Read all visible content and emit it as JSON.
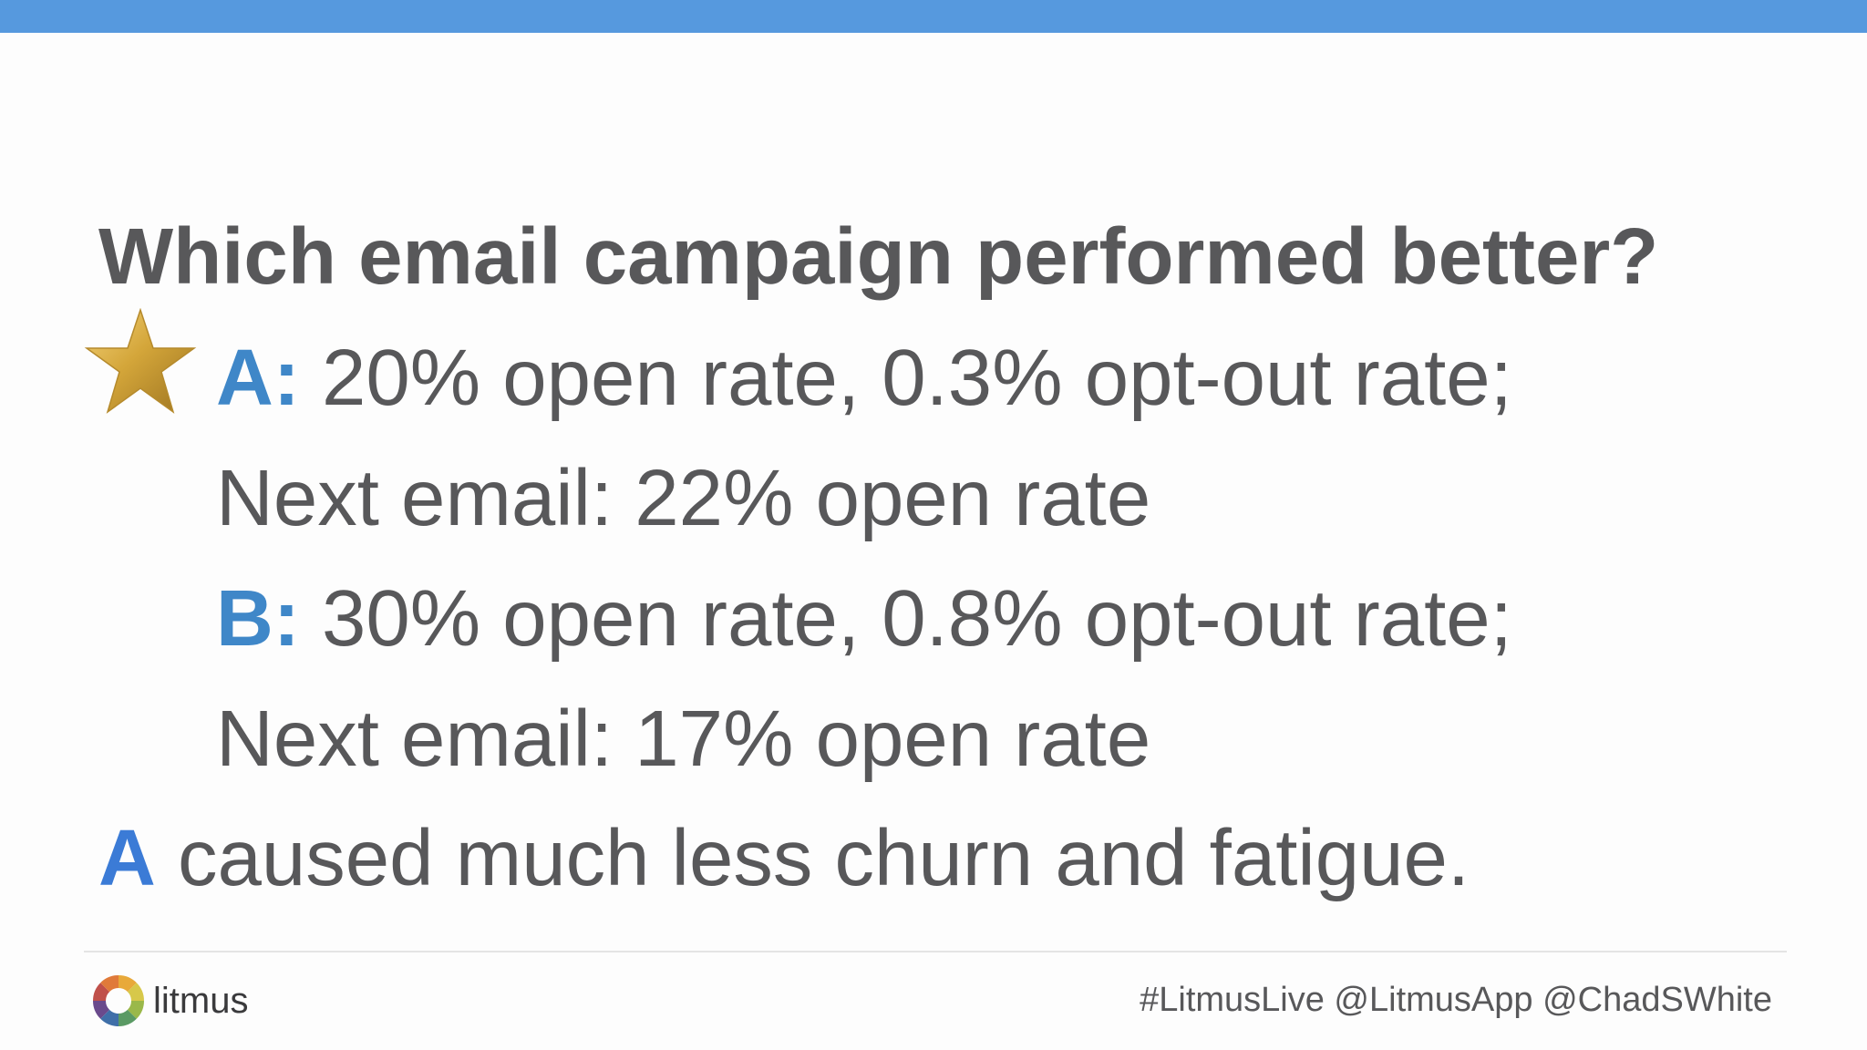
{
  "slide": {
    "question": "Which email campaign performed better?",
    "options": [
      {
        "letter": "A:",
        "text": " 20% open rate, 0.3% opt-out rate;",
        "followup": "Next email: 22% open rate",
        "starred": true
      },
      {
        "letter": "B:",
        "text": " 30% open rate, 0.8% opt-out rate;",
        "followup": "Next email: 17% open rate",
        "starred": false
      }
    ],
    "conclusion": {
      "letter": "A",
      "text": " caused much less churn and fatigue."
    }
  },
  "footer": {
    "logo_text": "litmus",
    "handles": "#LitmusLive @LitmusApp @ChadSWhite"
  },
  "colors": {
    "top_bar": "#5699de",
    "option_letter": "#3f87c8",
    "conclusion_letter": "#3b7bd6",
    "body_text": "#58585a",
    "star": "#d4a63a"
  },
  "icons": {
    "star": "star-icon",
    "logo": "litmus-logo-icon"
  }
}
